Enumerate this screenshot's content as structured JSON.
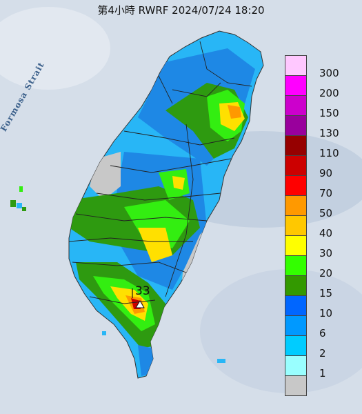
{
  "title": "第4小時 RWRF 2024/07/24 18:20",
  "strait_label": "Formosa Strait",
  "max_rainfall": "33",
  "legend": [
    {
      "label": "300",
      "color": "#ffc8ff"
    },
    {
      "label": "200",
      "color": "#ff00ff"
    },
    {
      "label": "150",
      "color": "#cc00cc"
    },
    {
      "label": "130",
      "color": "#99009c"
    },
    {
      "label": "110",
      "color": "#960000"
    },
    {
      "label": "90",
      "color": "#cc0000"
    },
    {
      "label": "70",
      "color": "#ff0000"
    },
    {
      "label": "50",
      "color": "#ff9900"
    },
    {
      "label": "40",
      "color": "#ffc800"
    },
    {
      "label": "30",
      "color": "#ffff00"
    },
    {
      "label": "20",
      "color": "#33ff00"
    },
    {
      "label": "15",
      "color": "#339900"
    },
    {
      "label": "10",
      "color": "#0066ff"
    },
    {
      "label": "6",
      "color": "#0099ff"
    },
    {
      "label": "2",
      "color": "#00ccff"
    },
    {
      "label": "1",
      "color": "#99ffff"
    },
    {
      "label": "",
      "color": "#c8c8c8"
    }
  ]
}
